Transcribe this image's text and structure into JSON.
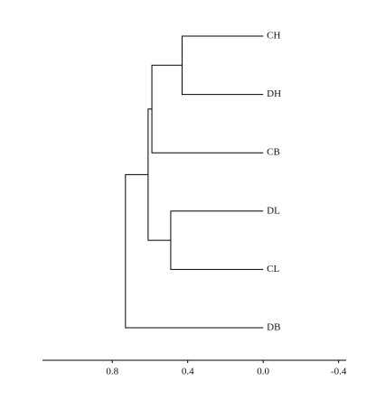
{
  "chart_data": {
    "type": "dendrogram",
    "leaves": [
      "CH",
      "DH",
      "CB",
      "DL",
      "CL",
      "DB"
    ],
    "merges": [
      {
        "children": [
          0,
          1
        ],
        "height": 0.43
      },
      {
        "children": [
          6,
          2
        ],
        "height": 0.59
      },
      {
        "children": [
          3,
          4
        ],
        "height": 0.49
      },
      {
        "children": [
          7,
          8
        ],
        "height": 0.61
      },
      {
        "children": [
          9,
          5
        ],
        "height": 0.73
      }
    ],
    "xlim": [
      1.17,
      -0.44
    ],
    "xticks": [
      0.8,
      0.4,
      {
        "value": 0,
        "label": "0.0"
      },
      -0.4
    ],
    "color": "#000000"
  }
}
